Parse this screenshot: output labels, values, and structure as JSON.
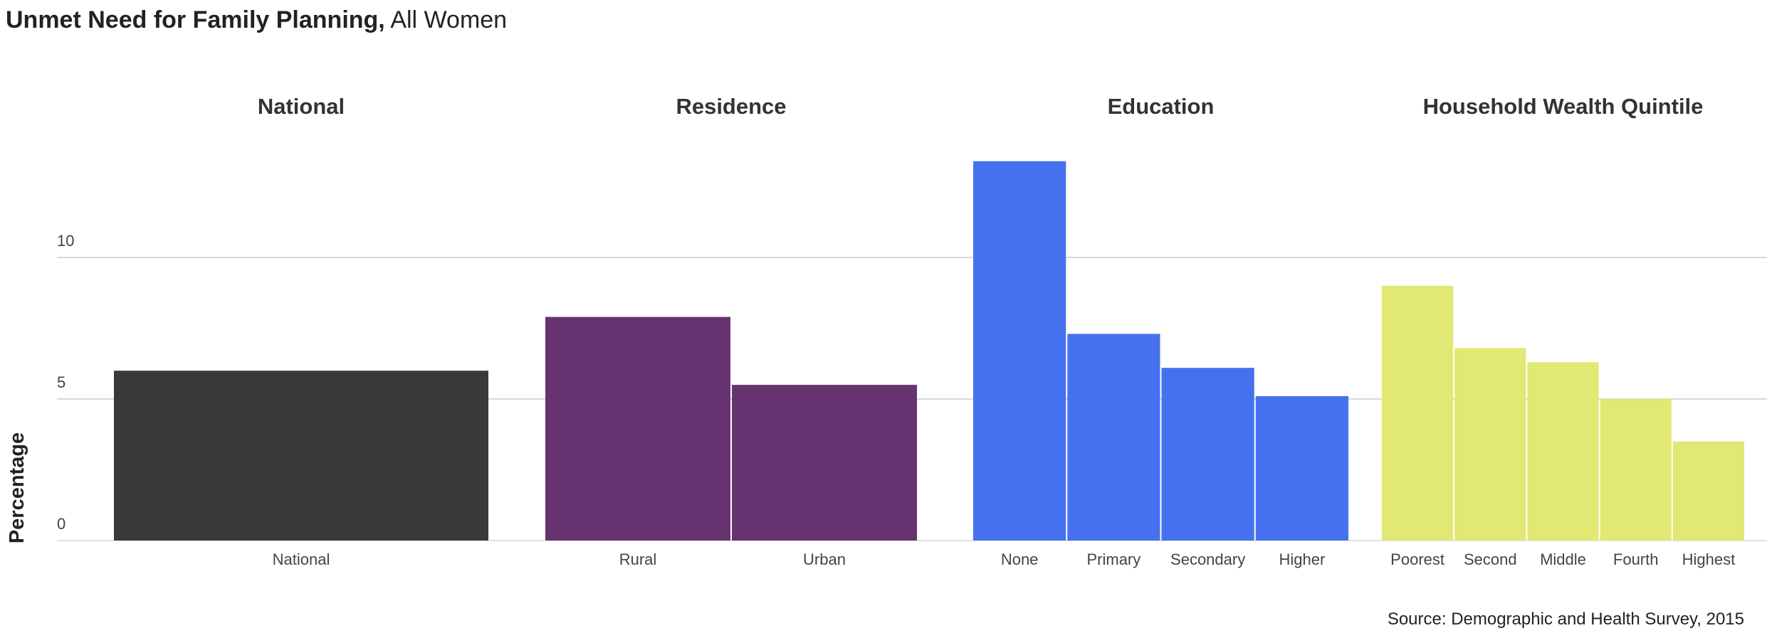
{
  "title": {
    "bold": "Unmet Need for Family Planning,",
    "rest": " All Women"
  },
  "source": "Source: Demographic and Health Survey, 2015",
  "chart_data": {
    "type": "bar",
    "ylabel": "Percentage",
    "ylim": [
      0,
      15
    ],
    "yticks": [
      0,
      5,
      10
    ],
    "grid": true,
    "groups": [
      {
        "name": "National",
        "color": "#393939",
        "categories": [
          "National"
        ],
        "values": [
          6.0
        ]
      },
      {
        "name": "Residence",
        "color": "#663370",
        "categories": [
          "Rural",
          "Urban"
        ],
        "values": [
          7.9,
          5.5
        ]
      },
      {
        "name": "Education",
        "color": "#4571EE",
        "categories": [
          "None",
          "Primary",
          "Secondary",
          "Higher"
        ],
        "values": [
          13.4,
          7.3,
          6.1,
          5.1
        ]
      },
      {
        "name": "Household Wealth Quintile",
        "color": "#E1E873",
        "categories": [
          "Poorest",
          "Second",
          "Middle",
          "Fourth",
          "Highest"
        ],
        "values": [
          9.0,
          6.8,
          6.3,
          5.0,
          3.5
        ]
      }
    ]
  }
}
